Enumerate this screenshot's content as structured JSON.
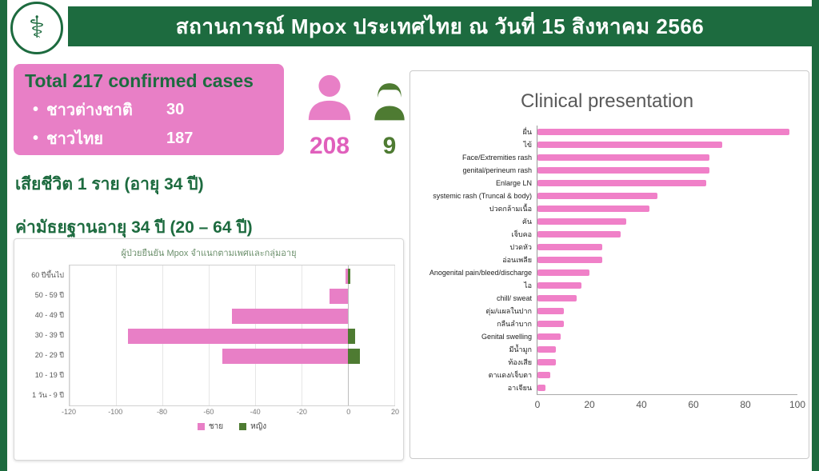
{
  "colors": {
    "brand_green": "#1d6b3f",
    "accent_pink": "#e87fc6",
    "female_green": "#4e7b32",
    "clinical_bar_pink": "#f080c8"
  },
  "header": {
    "title": "สถานการณ์ Mpox ประเทศไทย ณ วันที่ 15 สิงหาคม 2566",
    "logo_symbol": "⚕"
  },
  "summary": {
    "total_title": "Total 217 confirmed cases",
    "bullets": [
      {
        "label": "ชาวต่างชาติ",
        "value": "30"
      },
      {
        "label": "ชาวไทย",
        "value": "187"
      }
    ],
    "male_count": "208",
    "female_count": "9",
    "death_line": "เสียชีวิต 1 ราย (อายุ 34 ปี)",
    "median_line": "ค่ามัธยฐานอายุ 34 ปี (20 – 64 ปี)"
  },
  "chart_data": [
    {
      "name": "age_sex_pyramid",
      "type": "bar",
      "title": "ผู้ป่วยยืนยัน Mpox จำแนกตามเพศและกลุ่มอายุ",
      "orientation": "horizontal-pyramid",
      "categories": [
        "60 ปีขึ้นไป",
        "50 - 59 ปี",
        "40 - 49 ปี",
        "30 - 39 ปี",
        "20 - 29 ปี",
        "10 - 19 ปี",
        "1 วัน - 9 ปี"
      ],
      "series": [
        {
          "name": "ชาย",
          "color": "#e87fc6",
          "direction": "left",
          "values": [
            1,
            8,
            50,
            95,
            54,
            0,
            0
          ]
        },
        {
          "name": "หญิง",
          "color": "#4e7b32",
          "direction": "right",
          "values": [
            1,
            0,
            0,
            3,
            5,
            0,
            0
          ]
        }
      ],
      "xlim": [
        -120,
        20
      ],
      "xticks": [
        -120,
        -100,
        -80,
        -60,
        -40,
        -20,
        0,
        20
      ],
      "grid": true,
      "legend_position": "bottom"
    },
    {
      "name": "clinical_presentation",
      "type": "bar",
      "title": "Clinical presentation",
      "orientation": "horizontal",
      "categories": [
        "ผื่น",
        "ไข้",
        "Face/Extremities rash",
        "genital/perineum rash",
        "Enlarge LN",
        "systemic rash (Truncal & body)",
        "ปวดกล้ามเนื้อ",
        "คัน",
        "เจ็บคอ",
        "ปวดหัว",
        "อ่อนเพลีย",
        "Anogenital pain/bleed/discharge",
        "ไอ",
        "chill/ sweat",
        "ตุ่ม/แผลในปาก",
        "กลืนลำบาก",
        "Genital swelling",
        "มีน้ำมูก",
        "ท้องเสีย",
        "ตาแดง/เจ็บตา",
        "อาเจียน"
      ],
      "values": [
        97,
        71,
        66,
        66,
        65,
        46,
        43,
        34,
        32,
        25,
        25,
        20,
        17,
        15,
        10,
        10,
        9,
        7,
        7,
        5,
        3
      ],
      "bar_color": "#f080c8",
      "xlim": [
        0,
        100
      ],
      "xticks": [
        0,
        20,
        40,
        60,
        80,
        100
      ],
      "grid": false,
      "legend_position": "none"
    }
  ]
}
